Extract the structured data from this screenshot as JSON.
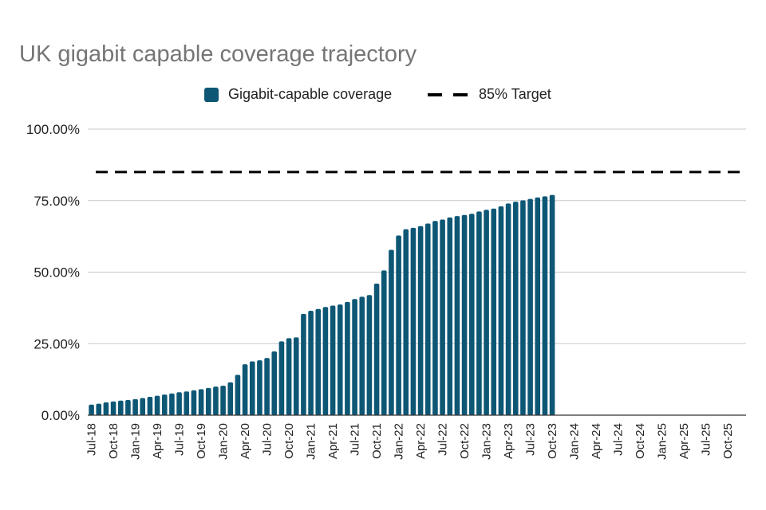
{
  "chart_data": {
    "type": "bar",
    "title": "UK gigabit capable coverage trajectory",
    "xlabel": "",
    "ylabel": "",
    "ylim": [
      0,
      100
    ],
    "y_ticks": [
      "0.00%",
      "25.00%",
      "50.00%",
      "75.00%",
      "100.00%"
    ],
    "grid": true,
    "legend_position": "top",
    "legend": [
      {
        "label": "Gigabit-capable coverage",
        "kind": "bar",
        "color": "#0d5775"
      },
      {
        "label": "85% Target",
        "kind": "dashed-line",
        "color": "#000000"
      }
    ],
    "x_labels": [
      "Jul-18",
      "Oct-18",
      "Jan-19",
      "Apr-19",
      "Jul-19",
      "Oct-19",
      "Jan-20",
      "Apr-20",
      "Jul-20",
      "Oct-20",
      "Jan-21",
      "Apr-21",
      "Jul-21",
      "Oct-21",
      "Jan-22",
      "Apr-22",
      "Jul-22",
      "Oct-22",
      "Jan-23",
      "Apr-23",
      "Jul-23",
      "Oct-23",
      "Jan-24",
      "Apr-24",
      "Jul-24",
      "Oct-24",
      "Jan-25",
      "Apr-25",
      "Jul-25",
      "Oct-25"
    ],
    "months_total": 90,
    "series": [
      {
        "name": "Gigabit-capable coverage",
        "color": "#0d5775",
        "values": [
          3.7,
          4.0,
          4.5,
          4.8,
          5.1,
          5.3,
          5.6,
          6.0,
          6.4,
          6.8,
          7.2,
          7.6,
          8.0,
          8.3,
          8.7,
          9.1,
          9.5,
          10.0,
          10.3,
          11.5,
          14.1,
          17.8,
          18.8,
          19.2,
          20.0,
          22.3,
          25.8,
          26.9,
          27.2,
          35.4,
          36.5,
          37.1,
          37.8,
          38.3,
          38.7,
          39.6,
          40.6,
          41.4,
          42.0,
          46.0,
          50.6,
          57.8,
          62.8,
          65.0,
          65.5,
          66.1,
          67.0,
          67.9,
          68.4,
          69.1,
          69.6,
          70.0,
          70.4,
          71.2,
          71.8,
          72.2,
          73.0,
          74.0,
          74.6,
          75.1,
          75.6,
          76.1,
          76.5,
          77.0
        ]
      },
      {
        "name": "85% Target",
        "color": "#000000",
        "value": 85
      }
    ]
  }
}
